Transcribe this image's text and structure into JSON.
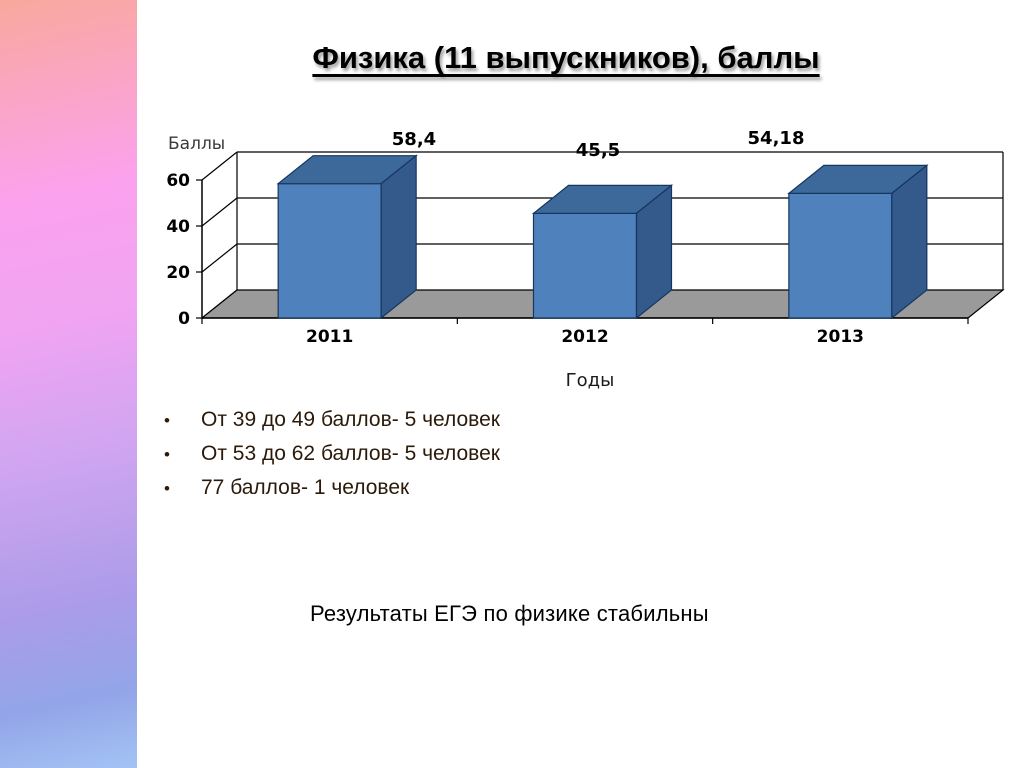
{
  "slide": {
    "title": "Физика (11 выпускников), баллы",
    "bullets": [
      "От 39 до 49 баллов- 5 человек",
      "От 53 до 62 баллов- 5 человек",
      "77 баллов- 1 человек"
    ],
    "conclusion": "Результаты ЕГЭ по физике стабильны"
  },
  "chart_data": {
    "type": "bar",
    "style": "3d-column",
    "title": "",
    "categories": [
      "2011",
      "2012",
      "2013"
    ],
    "values": [
      58.4,
      45.5,
      54.18
    ],
    "value_labels": [
      "58,4",
      "45,5",
      "54,18"
    ],
    "ylabel": "Баллы",
    "xlabel": "Годы",
    "y_ticks": [
      0,
      20,
      40,
      60
    ],
    "ylim": [
      0,
      60
    ],
    "grid": true,
    "legend": false,
    "bar_color": "#4f81bd",
    "bar_top_color": "#3d689a",
    "bar_side_color": "#345a8c",
    "bar_outline_color": "#15375f",
    "floor_color": "#9a9a9a",
    "line_color": "#000000"
  },
  "theme": {
    "background": "#ffffff",
    "strip_gradient": [
      "#f9a89d",
      "#fba2ee",
      "#d2a5f1",
      "#93a5e8",
      "#a3c3f4"
    ],
    "bullet_text_color": "#2b1a0a",
    "title_color": "#000000"
  }
}
